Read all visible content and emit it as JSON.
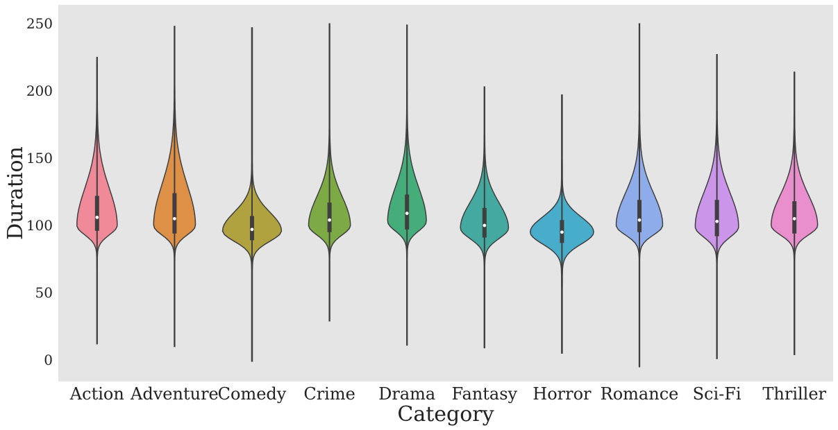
{
  "chart_data": {
    "type": "violin",
    "title": "",
    "xlabel": "Category",
    "ylabel": "Duration",
    "ylim": [
      -16,
      264
    ],
    "yticks": [
      0,
      50,
      100,
      150,
      200,
      250
    ],
    "grid": false,
    "legend": "none",
    "background_color": "#e5e5e5",
    "categories": [
      "Action",
      "Adventure",
      "Comedy",
      "Crime",
      "Drama",
      "Fantasy",
      "Horror",
      "Romance",
      "Sci-Fi",
      "Thriller"
    ],
    "colors": [
      "#f08a98",
      "#dd9046",
      "#b0a23e",
      "#7daa44",
      "#44ad7a",
      "#44aaa0",
      "#48accb",
      "#8eabea",
      "#cb95ea",
      "#ea8fcd"
    ],
    "series": [
      {
        "min": 12,
        "max": 225,
        "q1": 96,
        "median": 106,
        "q3": 122,
        "mode": 100,
        "max_half_width": 0.26
      },
      {
        "min": 10,
        "max": 248,
        "q1": 94,
        "median": 105,
        "q3": 124,
        "mode": 100,
        "max_half_width": 0.27
      },
      {
        "min": -1,
        "max": 247,
        "q1": 89,
        "median": 97,
        "q3": 107,
        "mode": 96,
        "max_half_width": 0.38
      },
      {
        "min": 29,
        "max": 250,
        "q1": 95,
        "median": 104,
        "q3": 117,
        "mode": 100,
        "max_half_width": 0.27
      },
      {
        "min": 11,
        "max": 249,
        "q1": 97,
        "median": 109,
        "q3": 123,
        "mode": 103,
        "max_half_width": 0.25
      },
      {
        "min": 9,
        "max": 203,
        "q1": 91,
        "median": 100,
        "q3": 113,
        "mode": 98,
        "max_half_width": 0.31
      },
      {
        "min": 5,
        "max": 197,
        "q1": 87,
        "median": 95,
        "q3": 104,
        "mode": 95,
        "max_half_width": 0.41
      },
      {
        "min": -5,
        "max": 250,
        "q1": 95,
        "median": 104,
        "q3": 119,
        "mode": 100,
        "max_half_width": 0.3
      },
      {
        "min": 1,
        "max": 227,
        "q1": 92,
        "median": 103,
        "q3": 119,
        "mode": 99,
        "max_half_width": 0.28
      },
      {
        "min": 4,
        "max": 214,
        "q1": 94,
        "median": 105,
        "q3": 118,
        "mode": 100,
        "max_half_width": 0.3
      }
    ]
  }
}
